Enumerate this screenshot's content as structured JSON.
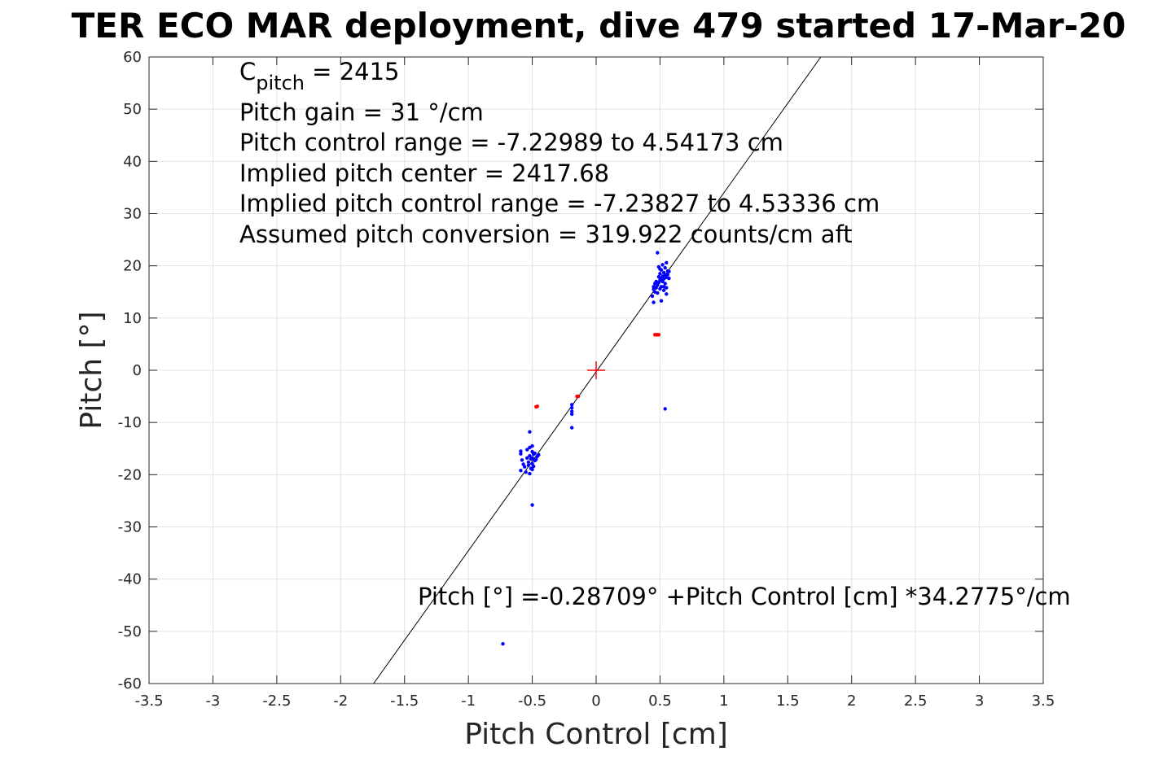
{
  "chart_data": {
    "type": "scatter",
    "title": "TER ECO MAR deployment, dive 479 started 17-Mar-20",
    "xlabel": "Pitch Control [cm]",
    "ylabel": "Pitch [°]",
    "xlim": [
      -3.5,
      3.5
    ],
    "ylim": [
      -60,
      60
    ],
    "x_ticks": [
      -3.5,
      -3,
      -2.5,
      -2,
      -1.5,
      -1,
      -0.5,
      0,
      0.5,
      1,
      1.5,
      2,
      2.5,
      3,
      3.5
    ],
    "y_ticks": [
      -60,
      -50,
      -40,
      -30,
      -20,
      -10,
      0,
      10,
      20,
      30,
      40,
      50,
      60
    ],
    "grid": true,
    "annotations": {
      "c_pitch_prefix": "C",
      "c_pitch_subscript": "pitch",
      "c_pitch_value": " = 2415",
      "lines": [
        "Pitch gain = 31 °/cm",
        "Pitch control range = -7.22989 to 4.54173 cm",
        "Implied pitch center = 2417.68",
        "Implied pitch control range = -7.23827 to 4.53336 cm",
        "Assumed pitch conversion = 319.922 counts/cm aft"
      ],
      "equation": "Pitch [°] =-0.28709° +Pitch Control [cm] *34.2775°/cm"
    },
    "fit": {
      "intercept": -0.28709,
      "slope": 34.2775,
      "color": "#000000"
    },
    "center_marker": {
      "x": 0,
      "y": 0,
      "color": "#ff0000"
    },
    "series": [
      {
        "color": "#0000ff",
        "points": [
          [
            -0.59,
            -15.5
          ],
          [
            -0.59,
            -16.0
          ],
          [
            -0.58,
            -17.2
          ],
          [
            -0.59,
            -19.2
          ],
          [
            -0.57,
            -18.0
          ],
          [
            -0.56,
            -18.5
          ],
          [
            -0.55,
            -19.5
          ],
          [
            -0.54,
            -16.8
          ],
          [
            -0.54,
            -15.2
          ],
          [
            -0.53,
            -17.6
          ],
          [
            -0.53,
            -18.2
          ],
          [
            -0.52,
            -14.8
          ],
          [
            -0.52,
            -16.4
          ],
          [
            -0.52,
            -19.8
          ],
          [
            -0.51,
            -17.0
          ],
          [
            -0.51,
            -18.8
          ],
          [
            -0.5,
            -15.6
          ],
          [
            -0.5,
            -16.8
          ],
          [
            -0.5,
            -17.9
          ],
          [
            -0.5,
            -19.0
          ],
          [
            -0.5,
            -14.5
          ],
          [
            -0.49,
            -18.4
          ],
          [
            -0.49,
            -16.1
          ],
          [
            -0.48,
            -17.3
          ],
          [
            -0.48,
            -15.9
          ],
          [
            -0.47,
            -17.1
          ],
          [
            -0.46,
            -16.5
          ],
          [
            -0.45,
            -16.2
          ],
          [
            -0.52,
            -11.8
          ],
          [
            -0.5,
            -25.8
          ],
          [
            -0.19,
            -6.6
          ],
          [
            -0.19,
            -7.2
          ],
          [
            -0.19,
            -7.9
          ],
          [
            -0.19,
            -8.4
          ],
          [
            -0.19,
            -11.0
          ],
          [
            -0.73,
            -52.4
          ],
          [
            0.54,
            -7.4
          ],
          [
            0.44,
            14.2
          ],
          [
            0.45,
            13.0
          ],
          [
            0.45,
            15.5
          ],
          [
            0.45,
            16.0
          ],
          [
            0.46,
            16.6
          ],
          [
            0.46,
            15.0
          ],
          [
            0.47,
            15.8
          ],
          [
            0.47,
            17.0
          ],
          [
            0.48,
            16.3
          ],
          [
            0.48,
            14.8
          ],
          [
            0.49,
            19.8
          ],
          [
            0.49,
            17.9
          ],
          [
            0.49,
            16.8
          ],
          [
            0.5,
            18.5
          ],
          [
            0.5,
            15.6
          ],
          [
            0.5,
            17.3
          ],
          [
            0.51,
            19.2
          ],
          [
            0.51,
            16.0
          ],
          [
            0.51,
            13.3
          ],
          [
            0.52,
            18.0
          ],
          [
            0.52,
            17.0
          ],
          [
            0.52,
            20.2
          ],
          [
            0.53,
            15.3
          ],
          [
            0.53,
            18.7
          ],
          [
            0.53,
            17.5
          ],
          [
            0.54,
            16.6
          ],
          [
            0.54,
            19.6
          ],
          [
            0.54,
            18.2
          ],
          [
            0.55,
            20.6
          ],
          [
            0.55,
            17.8
          ],
          [
            0.55,
            15.8
          ],
          [
            0.55,
            14.6
          ],
          [
            0.56,
            19.0
          ],
          [
            0.56,
            18.3
          ],
          [
            0.57,
            17.6
          ],
          [
            0.57,
            18.9
          ],
          [
            0.48,
            22.5
          ],
          [
            0.5,
            19.4
          ],
          [
            0.53,
            16.0
          ],
          [
            0.51,
            17.6
          ]
        ]
      },
      {
        "color": "#ff0000",
        "points": [
          [
            -0.47,
            -7.0
          ],
          [
            -0.46,
            -6.9
          ],
          [
            -0.15,
            -5.0
          ],
          [
            -0.14,
            -5.0
          ],
          [
            0.46,
            6.8
          ],
          [
            0.47,
            6.8
          ],
          [
            0.48,
            6.8
          ],
          [
            0.49,
            6.8
          ]
        ]
      }
    ]
  }
}
